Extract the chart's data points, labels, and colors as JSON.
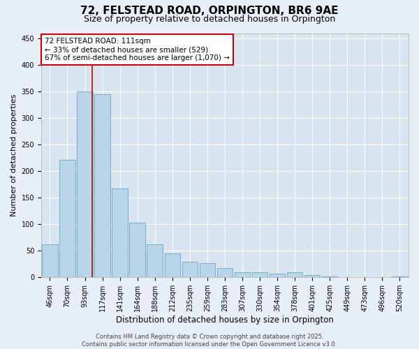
{
  "title_line1": "72, FELSTEAD ROAD, ORPINGTON, BR6 9AE",
  "title_line2": "Size of property relative to detached houses in Orpington",
  "xlabel": "Distribution of detached houses by size in Orpington",
  "ylabel": "Number of detached properties",
  "categories": [
    "46sqm",
    "70sqm",
    "93sqm",
    "117sqm",
    "141sqm",
    "164sqm",
    "188sqm",
    "212sqm",
    "235sqm",
    "259sqm",
    "283sqm",
    "307sqm",
    "330sqm",
    "354sqm",
    "378sqm",
    "401sqm",
    "425sqm",
    "449sqm",
    "473sqm",
    "496sqm",
    "520sqm"
  ],
  "values": [
    62,
    222,
    350,
    345,
    168,
    103,
    62,
    45,
    30,
    27,
    18,
    10,
    10,
    7,
    10,
    5,
    2,
    0,
    0,
    0,
    2
  ],
  "bar_color": "#b8d4e8",
  "bar_edgecolor": "#5a9abf",
  "vline_color": "#cc0000",
  "annotation_line1": "72 FELSTEAD ROAD: 111sqm",
  "annotation_line2": "← 33% of detached houses are smaller (529)",
  "annotation_line3": "67% of semi-detached houses are larger (1,070) →",
  "annotation_box_color": "#ffffff",
  "annotation_box_edgecolor": "#cc0000",
  "ylim": [
    0,
    460
  ],
  "yticks": [
    0,
    50,
    100,
    150,
    200,
    250,
    300,
    350,
    400,
    450
  ],
  "bg_color": "#e8eef5",
  "plot_bg_color": "#d8e4f0",
  "grid_color": "#ffffff",
  "footer_line1": "Contains HM Land Registry data © Crown copyright and database right 2025.",
  "footer_line2": "Contains public sector information licensed under the Open Government Licence v3.0.",
  "title_fontsize": 11,
  "subtitle_fontsize": 9,
  "xlabel_fontsize": 8.5,
  "ylabel_fontsize": 8,
  "tick_fontsize": 7,
  "annotation_fontsize": 7.5,
  "footer_fontsize": 6
}
